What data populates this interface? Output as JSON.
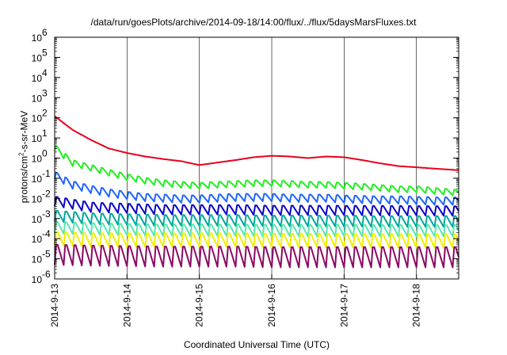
{
  "chart_data": {
    "type": "line",
    "title": "/data/run/goesPlots/archive/2014-09-18/14:00/flux/../flux/5daysMarsFluxes.txt",
    "xlabel": "Coordinated Universal Time (UTC)",
    "ylabel": {
      "prefix": "protons/cm",
      "sup": "2",
      "suffix": "-s-sr-MeV"
    },
    "yscale": "log",
    "ylim": [
      1e-06,
      1000000.0
    ],
    "y_ticks": [
      {
        "value": -6,
        "label": "10",
        "exp": "-6"
      },
      {
        "value": -5,
        "label": "10",
        "exp": "-5"
      },
      {
        "value": -4,
        "label": "10",
        "exp": "-4"
      },
      {
        "value": -3,
        "label": "10",
        "exp": "-3"
      },
      {
        "value": -2,
        "label": "10",
        "exp": "-2"
      },
      {
        "value": -1,
        "label": "10",
        "exp": "-1"
      },
      {
        "value": 0,
        "label": "10",
        "exp": "0"
      },
      {
        "value": 1,
        "label": "10",
        "exp": "1"
      },
      {
        "value": 2,
        "label": "10",
        "exp": "2"
      },
      {
        "value": 3,
        "label": "10",
        "exp": "3"
      },
      {
        "value": 4,
        "label": "10",
        "exp": "4"
      },
      {
        "value": 5,
        "label": "10",
        "exp": "5"
      },
      {
        "value": 6,
        "label": "10",
        "exp": "6"
      }
    ],
    "xlim": [
      "2014-09-13 00:00",
      "2014-09-18 14:00"
    ],
    "x_ticks": [
      {
        "x": "2014-09-13 00:00",
        "label": "2014-9-13"
      },
      {
        "x": "2014-09-14 00:00",
        "label": "2014-9-14"
      },
      {
        "x": "2014-09-15 00:00",
        "label": "2014-9-15"
      },
      {
        "x": "2014-09-16 00:00",
        "label": "2014-9-16"
      },
      {
        "x": "2014-09-17 00:00",
        "label": "2014-9-17"
      },
      {
        "x": "2014-09-18 00:00",
        "label": "2014-9-18"
      }
    ],
    "grid": "vertical lines at day ticks",
    "series": [
      {
        "color": "#e8001c",
        "sawtooth_amp": 0.0,
        "x": [
          "2014-09-13 00:00",
          "2014-09-13 06:00",
          "2014-09-13 12:00",
          "2014-09-13 18:00",
          "2014-09-14 00:00",
          "2014-09-14 06:00",
          "2014-09-14 12:00",
          "2014-09-14 18:00",
          "2014-09-15 00:00",
          "2014-09-15 06:00",
          "2014-09-15 12:00",
          "2014-09-15 18:00",
          "2014-09-16 00:00",
          "2014-09-16 06:00",
          "2014-09-16 12:00",
          "2014-09-16 18:00",
          "2014-09-17 00:00",
          "2014-09-17 06:00",
          "2014-09-17 12:00",
          "2014-09-17 18:00",
          "2014-09-18 00:00",
          "2014-09-18 06:00",
          "2014-09-18 14:00"
        ],
        "y": [
          120,
          25,
          8,
          3,
          1.8,
          1.2,
          0.9,
          0.7,
          0.45,
          0.6,
          0.8,
          1.1,
          1.3,
          1.2,
          1.0,
          1.2,
          1.1,
          0.8,
          0.55,
          0.4,
          0.35,
          0.3,
          0.25
        ]
      },
      {
        "color": "#22ee22",
        "sawtooth_amp": 0.18,
        "x": [
          "2014-09-13 00:00",
          "2014-09-13 06:00",
          "2014-09-13 12:00",
          "2014-09-13 18:00",
          "2014-09-14 00:00",
          "2014-09-14 06:00",
          "2014-09-14 12:00",
          "2014-09-14 18:00",
          "2014-09-15 00:00",
          "2014-09-15 06:00",
          "2014-09-15 12:00",
          "2014-09-15 18:00",
          "2014-09-16 00:00",
          "2014-09-16 06:00",
          "2014-09-16 12:00",
          "2014-09-16 18:00",
          "2014-09-17 00:00",
          "2014-09-17 06:00",
          "2014-09-17 12:00",
          "2014-09-17 18:00",
          "2014-09-18 00:00",
          "2014-09-18 06:00",
          "2014-09-18 14:00"
        ],
        "y": [
          3.5,
          0.6,
          0.35,
          0.2,
          0.12,
          0.08,
          0.06,
          0.05,
          0.045,
          0.05,
          0.055,
          0.06,
          0.06,
          0.055,
          0.05,
          0.05,
          0.045,
          0.04,
          0.035,
          0.03,
          0.03,
          0.025,
          0.02
        ]
      },
      {
        "color": "#1e64ff",
        "sawtooth_amp": 0.22,
        "x": [
          "2014-09-13 00:00",
          "2014-09-13 06:00",
          "2014-09-13 12:00",
          "2014-09-13 18:00",
          "2014-09-14 00:00",
          "2014-09-14 06:00",
          "2014-09-14 12:00",
          "2014-09-14 18:00",
          "2014-09-15 00:00",
          "2014-09-15 06:00",
          "2014-09-15 12:00",
          "2014-09-15 18:00",
          "2014-09-16 00:00",
          "2014-09-16 06:00",
          "2014-09-16 12:00",
          "2014-09-16 18:00",
          "2014-09-17 00:00",
          "2014-09-17 06:00",
          "2014-09-17 12:00",
          "2014-09-17 18:00",
          "2014-09-18 00:00",
          "2014-09-18 06:00",
          "2014-09-18 14:00"
        ],
        "y": [
          0.15,
          0.05,
          0.03,
          0.02,
          0.015,
          0.012,
          0.011,
          0.01,
          0.01,
          0.011,
          0.012,
          0.012,
          0.012,
          0.011,
          0.011,
          0.011,
          0.01,
          0.0095,
          0.009,
          0.009,
          0.0085,
          0.008,
          0.008
        ]
      },
      {
        "color": "#0a00c8",
        "sawtooth_amp": 0.28,
        "x": [
          "2014-09-13 00:00",
          "2014-09-13 12:00",
          "2014-09-14 00:00",
          "2014-09-14 12:00",
          "2014-09-15 00:00",
          "2014-09-15 12:00",
          "2014-09-16 00:00",
          "2014-09-16 12:00",
          "2014-09-17 00:00",
          "2014-09-17 12:00",
          "2014-09-18 00:00",
          "2014-09-18 14:00"
        ],
        "y": [
          0.008,
          0.004,
          0.0035,
          0.003,
          0.003,
          0.003,
          0.0028,
          0.0028,
          0.0028,
          0.0027,
          0.0027,
          0.0026
        ]
      },
      {
        "color": "#00a89a",
        "sawtooth_amp": 0.32,
        "x": [
          "2014-09-13 00:00",
          "2014-09-13 12:00",
          "2014-09-14 00:00",
          "2014-09-14 12:00",
          "2014-09-15 00:00",
          "2014-09-15 12:00",
          "2014-09-16 00:00",
          "2014-09-16 12:00",
          "2014-09-17 00:00",
          "2014-09-17 12:00",
          "2014-09-18 00:00",
          "2014-09-18 14:00"
        ],
        "y": [
          0.0015,
          0.0011,
          0.001,
          0.0009,
          0.0009,
          0.0009,
          0.00085,
          0.00085,
          0.00085,
          0.0008,
          0.0008,
          0.0008
        ]
      },
      {
        "color": "#58e6b0",
        "sawtooth_amp": 0.34,
        "x": [
          "2014-09-13 00:00",
          "2014-09-13 12:00",
          "2014-09-14 00:00",
          "2014-09-14 12:00",
          "2014-09-15 00:00",
          "2014-09-15 12:00",
          "2014-09-16 00:00",
          "2014-09-16 12:00",
          "2014-09-17 00:00",
          "2014-09-17 12:00",
          "2014-09-18 00:00",
          "2014-09-18 14:00"
        ],
        "y": [
          0.0004,
          0.00035,
          0.00032,
          0.0003,
          0.0003,
          0.0003,
          0.00029,
          0.00029,
          0.00029,
          0.00028,
          0.00028,
          0.00028
        ]
      },
      {
        "color": "#f0f000",
        "sawtooth_amp": 0.4,
        "x": [
          "2014-09-13 00:00",
          "2014-09-13 12:00",
          "2014-09-14 00:00",
          "2014-09-14 12:00",
          "2014-09-15 00:00",
          "2014-09-15 12:00",
          "2014-09-16 00:00",
          "2014-09-16 12:00",
          "2014-09-17 00:00",
          "2014-09-17 12:00",
          "2014-09-18 00:00",
          "2014-09-18 14:00"
        ],
        "y": [
          0.00012,
          0.0001,
          0.0001,
          0.0001,
          0.0001,
          0.0001,
          9.5e-05,
          9.5e-05,
          9.5e-05,
          9e-05,
          9e-05,
          9e-05
        ]
      },
      {
        "color": "#8c0a64",
        "sawtooth_amp": 0.6,
        "x": [
          "2014-09-13 00:00",
          "2014-09-13 12:00",
          "2014-09-14 00:00",
          "2014-09-14 12:00",
          "2014-09-15 00:00",
          "2014-09-15 12:00",
          "2014-09-16 00:00",
          "2014-09-16 12:00",
          "2014-09-17 00:00",
          "2014-09-17 12:00",
          "2014-09-18 00:00",
          "2014-09-18 14:00"
        ],
        "y": [
          2e-05,
          1.8e-05,
          1.7e-05,
          1.6e-05,
          1.6e-05,
          1.6e-05,
          1.5e-05,
          1.5e-05,
          1.5e-05,
          1.5e-05,
          1.5e-05,
          1.5e-05
        ]
      }
    ]
  }
}
